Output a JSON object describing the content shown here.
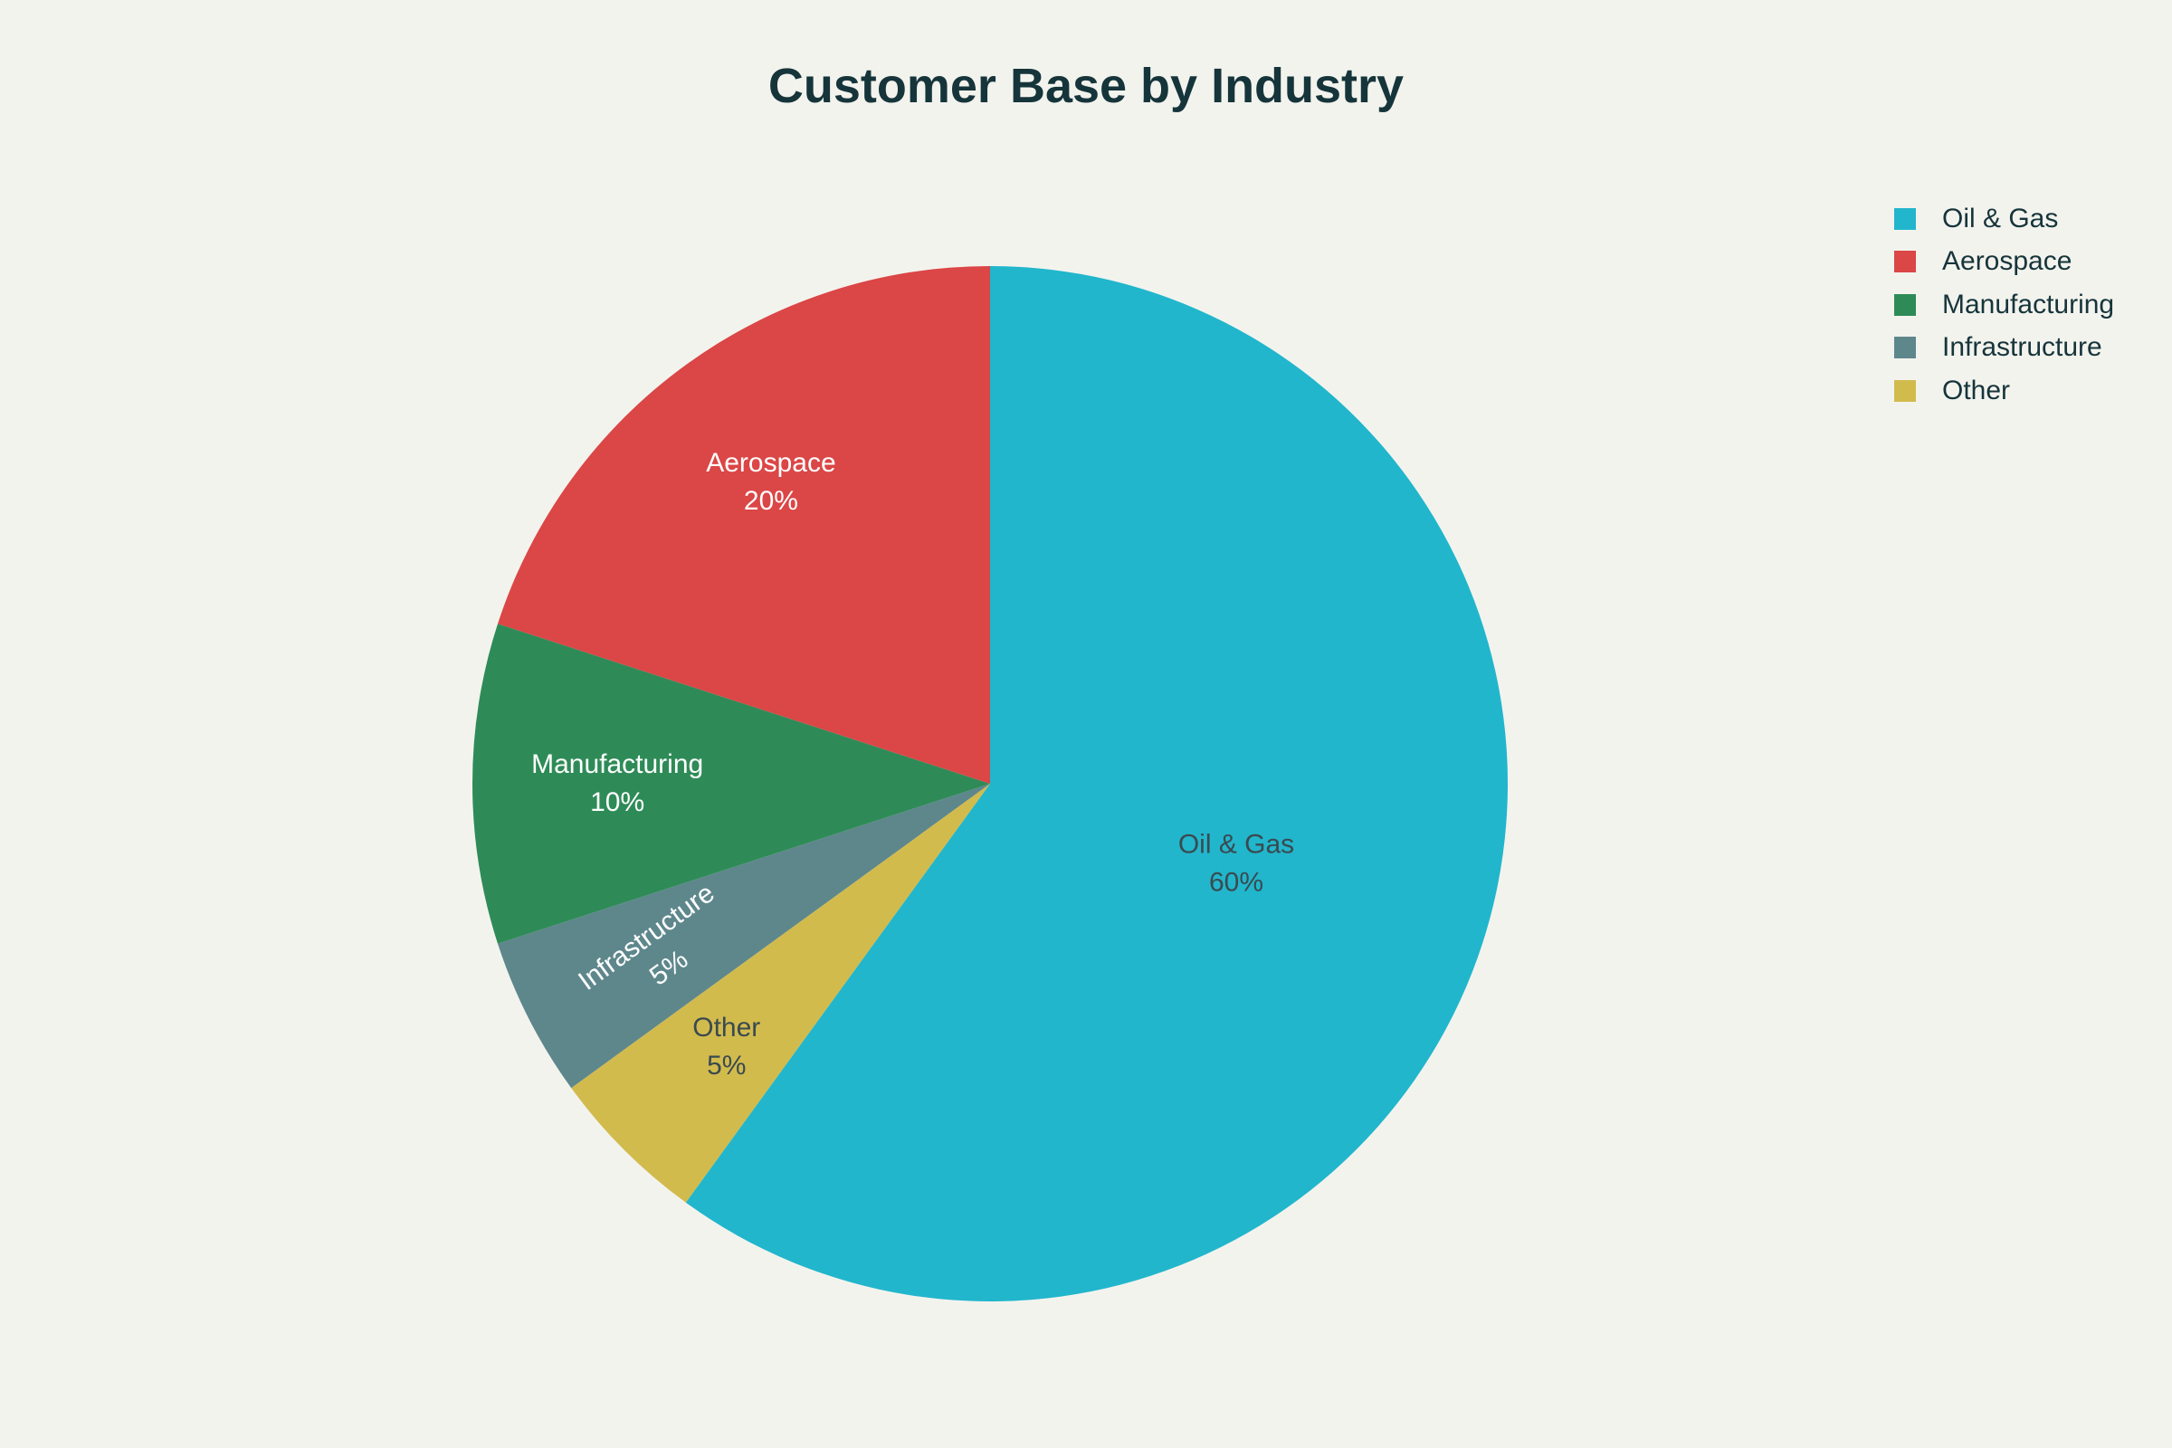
{
  "chart_data": {
    "type": "pie",
    "title": "Customer Base by Industry",
    "legend_position": "top-right",
    "slices": [
      {
        "label": "Oil & Gas",
        "value": 60,
        "percent_label": "60%",
        "color": "#21b6cc",
        "text_color": "#3a4a50"
      },
      {
        "label": "Aerospace",
        "value": 20,
        "percent_label": "20%",
        "color": "#db4646",
        "text_color": "#ffffff"
      },
      {
        "label": "Manufacturing",
        "value": 10,
        "percent_label": "10%",
        "color": "#2e8b57",
        "text_color": "#ffffff"
      },
      {
        "label": "Infrastructure",
        "value": 5,
        "percent_label": "5%",
        "color": "#5e878c",
        "text_color": "#ffffff"
      },
      {
        "label": "Other",
        "value": 5,
        "percent_label": "5%",
        "color": "#d2bb4d",
        "text_color": "#3a4a50"
      }
    ]
  }
}
